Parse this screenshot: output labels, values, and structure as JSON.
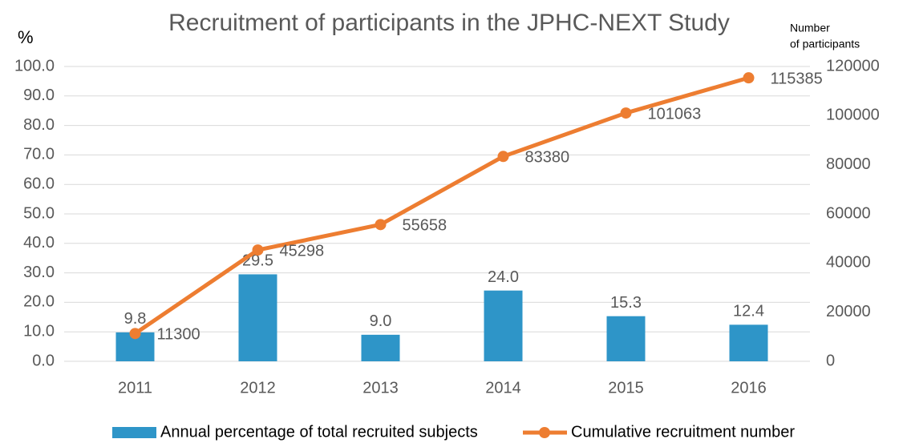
{
  "chart_data": {
    "type": "bar_line",
    "title": "Recruitment of participants in the JPHC-NEXT Study",
    "ylabel": "%",
    "y2label": [
      "Number",
      "of participants"
    ],
    "categories": [
      "2011",
      "2012",
      "2013",
      "2014",
      "2015",
      "2016"
    ],
    "series": [
      {
        "name": "Annual percentage of total recruited subjects",
        "type": "bar",
        "color": "#2e95c8",
        "values": [
          9.8,
          29.5,
          9,
          24,
          15.3,
          12.4
        ],
        "value_labels": [
          "9.8",
          "29.5",
          "9.0",
          "24.0",
          "15.3",
          "12.4"
        ]
      },
      {
        "name": "Cumulative recruitment number",
        "type": "line",
        "axis": "y2",
        "color": "#ed7d31",
        "values": [
          11300,
          45298,
          55658,
          83380,
          101063,
          115385
        ]
      }
    ],
    "ylim": [
      0,
      100
    ],
    "yticks": [
      {
        "value": 0,
        "label": "0.0"
      },
      {
        "value": 10,
        "label": "10.0"
      },
      {
        "value": 20,
        "label": "20.0"
      },
      {
        "value": 30,
        "label": "30.0"
      },
      {
        "value": 40,
        "label": "40.0"
      },
      {
        "value": 50,
        "label": "50.0"
      },
      {
        "value": 60,
        "label": "60.0"
      },
      {
        "value": 70,
        "label": "70.0"
      },
      {
        "value": 80,
        "label": "80.0"
      },
      {
        "value": 90,
        "label": "90.0"
      },
      {
        "value": 100,
        "label": "100.0"
      }
    ],
    "y2lim": [
      0,
      120000
    ],
    "y2ticks": [
      0,
      20000,
      40000,
      60000,
      80000,
      100000,
      120000
    ],
    "grid": true,
    "legend": "bottom"
  }
}
